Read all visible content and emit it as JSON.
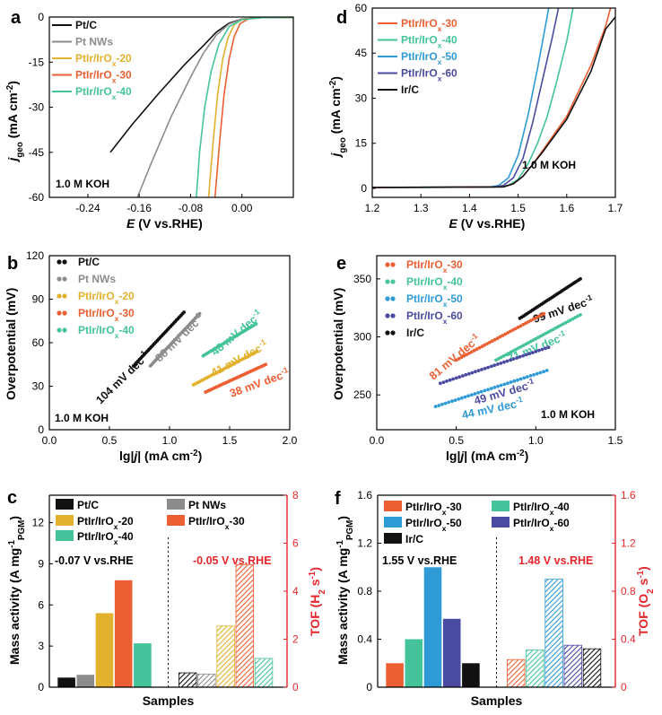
{
  "colors": {
    "black": "#111111",
    "gray": "#8c8c8c",
    "yellow": "#e2b12e",
    "red": "#ec5f33",
    "teal": "#45c39b",
    "blue": "#2e9ad6",
    "purple": "#4b4aa1",
    "axis_red": "#e5262b"
  },
  "chart_data": [
    {
      "id": "a",
      "type": "line",
      "panel_letter": "a",
      "xlabel_main": "E",
      "xlabel_rest": " (V vs.RHE)",
      "ylabel_main": "j",
      "ylabel_sub": "geo",
      "ylabel_rest": " (mA cm",
      "ylabel_sup": "-2",
      "ylabel_end": ")",
      "xlim": [
        -0.3,
        0.08
      ],
      "ylim": [
        -60,
        0
      ],
      "xticks": [
        "-0.24",
        "-0.16",
        "-0.08",
        "0.00"
      ],
      "xtick_values": [
        -0.24,
        -0.16,
        -0.08,
        0.0
      ],
      "yticks": [
        "0",
        "-15",
        "-30",
        "-45",
        "-60"
      ],
      "ytick_values": [
        0,
        -15,
        -30,
        -45,
        -60
      ],
      "annotation": "1.0 M KOH",
      "legend": [
        {
          "base": "Pt/C",
          "sub": "",
          "rest": "",
          "color": "black"
        },
        {
          "base": "Pt NWs",
          "sub": "",
          "rest": "",
          "color": "gray"
        },
        {
          "base": "PtIr/IrO",
          "sub": "x",
          "rest": "-20",
          "color": "yellow"
        },
        {
          "base": "PtIr/IrO",
          "sub": "x",
          "rest": "-30",
          "color": "red"
        },
        {
          "base": "PtIr/IrO",
          "sub": "x",
          "rest": "-40",
          "color": "teal"
        }
      ],
      "series": [
        {
          "color": "black",
          "points": [
            [
              -0.205,
              -45
            ],
            [
              -0.17,
              -35.5
            ],
            [
              -0.13,
              -25.5
            ],
            [
              -0.09,
              -16
            ],
            [
              -0.06,
              -9.5
            ],
            [
              -0.04,
              -5
            ],
            [
              -0.02,
              -2
            ],
            [
              0.0,
              -0.7
            ],
            [
              0.03,
              -0.2
            ],
            [
              0.08,
              -0.1
            ]
          ]
        },
        {
          "color": "gray",
          "points": [
            [
              -0.163,
              -60
            ],
            [
              -0.14,
              -48
            ],
            [
              -0.11,
              -33
            ],
            [
              -0.08,
              -20
            ],
            [
              -0.06,
              -12
            ],
            [
              -0.04,
              -6
            ],
            [
              -0.02,
              -2.3
            ],
            [
              0.0,
              -0.7
            ],
            [
              0.03,
              -0.2
            ],
            [
              0.08,
              -0.1
            ]
          ]
        },
        {
          "color": "yellow",
          "points": [
            [
              -0.052,
              -60
            ],
            [
              -0.045,
              -42
            ],
            [
              -0.038,
              -26
            ],
            [
              -0.03,
              -14
            ],
            [
              -0.022,
              -7
            ],
            [
              -0.012,
              -2.5
            ],
            [
              0.0,
              -0.8
            ],
            [
              0.03,
              -0.2
            ],
            [
              0.08,
              -0.1
            ]
          ]
        },
        {
          "color": "red",
          "points": [
            [
              -0.042,
              -60
            ],
            [
              -0.035,
              -42
            ],
            [
              -0.028,
              -26
            ],
            [
              -0.02,
              -14
            ],
            [
              -0.012,
              -6.5
            ],
            [
              -0.003,
              -2.2
            ],
            [
              0.01,
              -0.6
            ],
            [
              0.03,
              -0.2
            ],
            [
              0.08,
              -0.1
            ]
          ]
        },
        {
          "color": "teal",
          "points": [
            [
              -0.071,
              -60
            ],
            [
              -0.066,
              -45
            ],
            [
              -0.058,
              -30
            ],
            [
              -0.048,
              -18
            ],
            [
              -0.036,
              -9
            ],
            [
              -0.02,
              -3.2
            ],
            [
              0.0,
              -0.9
            ],
            [
              0.03,
              -0.2
            ],
            [
              0.08,
              -0.1
            ]
          ]
        }
      ]
    },
    {
      "id": "d",
      "type": "line",
      "panel_letter": "d",
      "xlabel_main": "E",
      "xlabel_rest": " (V vs.RHE)",
      "ylabel_main": "j",
      "ylabel_sub": "geo",
      "ylabel_rest": " (mA cm",
      "ylabel_sup": "-2",
      "ylabel_end": ")",
      "xlim": [
        1.2,
        1.7
      ],
      "ylim": [
        -3,
        60
      ],
      "xticks": [
        "1.2",
        "1.3",
        "1.4",
        "1.5",
        "1.6",
        "1.7"
      ],
      "xtick_values": [
        1.2,
        1.3,
        1.4,
        1.5,
        1.6,
        1.7
      ],
      "yticks": [
        "0",
        "15",
        "30",
        "45",
        "60"
      ],
      "ytick_values": [
        0,
        15,
        30,
        45,
        60
      ],
      "annotation": "1.0 M KOH",
      "legend": [
        {
          "base": "PtIr/IrO",
          "sub": "x",
          "rest": "-30",
          "color": "red"
        },
        {
          "base": "PtIr/IrO",
          "sub": "x",
          "rest": "-40",
          "color": "teal"
        },
        {
          "base": "PtIr/IrO",
          "sub": "x",
          "rest": "-50",
          "color": "blue"
        },
        {
          "base": "PtIr/IrO",
          "sub": "x",
          "rest": "-60",
          "color": "purple"
        },
        {
          "base": "Ir/C",
          "sub": "",
          "rest": "",
          "color": "black"
        }
      ],
      "series": [
        {
          "color": "teal",
          "points": [
            [
              1.2,
              0.3
            ],
            [
              1.45,
              0.4
            ],
            [
              1.48,
              1
            ],
            [
              1.5,
              3
            ],
            [
              1.52,
              8
            ],
            [
              1.54,
              15
            ],
            [
              1.56,
              24
            ],
            [
              1.58,
              36
            ],
            [
              1.6,
              49
            ],
            [
              1.613,
              60
            ]
          ]
        },
        {
          "color": "blue",
          "points": [
            [
              1.2,
              0.3
            ],
            [
              1.44,
              0.4
            ],
            [
              1.46,
              1
            ],
            [
              1.48,
              3.5
            ],
            [
              1.5,
              11
            ],
            [
              1.52,
              24
            ],
            [
              1.54,
              40
            ],
            [
              1.555,
              53
            ],
            [
              1.563,
              60
            ]
          ]
        },
        {
          "color": "purple",
          "points": [
            [
              1.2,
              0.3
            ],
            [
              1.45,
              0.4
            ],
            [
              1.47,
              1
            ],
            [
              1.49,
              3.5
            ],
            [
              1.51,
              10
            ],
            [
              1.53,
              22
            ],
            [
              1.55,
              36
            ],
            [
              1.57,
              50
            ],
            [
              1.583,
              60
            ]
          ]
        },
        {
          "color": "red",
          "points": [
            [
              1.2,
              0.3
            ],
            [
              1.47,
              0.5
            ],
            [
              1.49,
              1.5
            ],
            [
              1.51,
              4
            ],
            [
              1.53,
              8
            ],
            [
              1.55,
              12.5
            ],
            [
              1.6,
              24
            ],
            [
              1.65,
              41
            ],
            [
              1.68,
              54
            ],
            [
              1.69,
              60
            ]
          ]
        },
        {
          "color": "black",
          "points": [
            [
              1.2,
              0.3
            ],
            [
              1.47,
              0.5
            ],
            [
              1.49,
              1.5
            ],
            [
              1.51,
              4
            ],
            [
              1.53,
              8
            ],
            [
              1.55,
              12
            ],
            [
              1.6,
              23
            ],
            [
              1.65,
              39
            ],
            [
              1.68,
              53
            ],
            [
              1.7,
              57
            ]
          ]
        }
      ]
    },
    {
      "id": "b",
      "type": "scatter",
      "panel_letter": "b",
      "xlabel_main": "lg|",
      "xlabel_italic": "j",
      "xlabel_rest": "| (mA cm",
      "xlabel_sup": "-2",
      "xlabel_end": ")",
      "ylabel": "Overpotential (mV)",
      "xlim": [
        0.0,
        2.0
      ],
      "ylim": [
        0,
        120
      ],
      "xticks": [
        "0.0",
        "0.5",
        "1.0",
        "1.5",
        "2.0"
      ],
      "xtick_values": [
        0.0,
        0.5,
        1.0,
        1.5,
        2.0
      ],
      "yticks": [
        "0",
        "30",
        "60",
        "90",
        "120"
      ],
      "ytick_values": [
        0,
        30,
        60,
        90,
        120
      ],
      "annotation": "1.0 M KOH",
      "legend": [
        {
          "base": "Pt/C",
          "sub": "",
          "rest": "",
          "color": "black"
        },
        {
          "base": "Pt NWs",
          "sub": "",
          "rest": "",
          "color": "gray"
        },
        {
          "base": "PtIr/IrO",
          "sub": "x",
          "rest": "-20",
          "color": "yellow"
        },
        {
          "base": "PtIr/IrO",
          "sub": "x",
          "rest": "-30",
          "color": "red"
        },
        {
          "base": "PtIr/IrO",
          "sub": "x",
          "rest": "-40",
          "color": "teal"
        }
      ],
      "series": [
        {
          "color": "black",
          "x0": 0.7,
          "x1": 1.12,
          "y0": 44,
          "y1": 81,
          "label": "104 mV dec",
          "label_sup": "-1"
        },
        {
          "color": "gray",
          "x0": 0.84,
          "x1": 1.25,
          "y0": 44,
          "y1": 80,
          "label": "88 mV dec",
          "label_sup": "-1"
        },
        {
          "color": "teal",
          "x0": 1.28,
          "x1": 1.72,
          "y0": 51,
          "y1": 73,
          "label": "48 mV dec",
          "label_sup": "-1"
        },
        {
          "color": "yellow",
          "x0": 1.2,
          "x1": 1.73,
          "y0": 31,
          "y1": 54,
          "label": "41 mV dec",
          "label_sup": "-1"
        },
        {
          "color": "red",
          "x0": 1.3,
          "x1": 1.8,
          "y0": 26,
          "y1": 45,
          "label": "38 mV dec",
          "label_sup": "-1"
        }
      ]
    },
    {
      "id": "e",
      "type": "scatter",
      "panel_letter": "e",
      "xlabel_main": "lg|",
      "xlabel_italic": "j",
      "xlabel_rest": "| (mA cm",
      "xlabel_sup": "-2",
      "xlabel_end": ")",
      "ylabel": "Overpotential (mV)",
      "xlim": [
        0.0,
        1.5
      ],
      "ylim": [
        220,
        370
      ],
      "xticks": [
        "0.0",
        "0.5",
        "1.0",
        "1.5"
      ],
      "xtick_values": [
        0.0,
        0.5,
        1.0,
        1.5
      ],
      "yticks": [
        "250",
        "300",
        "350"
      ],
      "ytick_values": [
        250,
        300,
        350
      ],
      "annotation": "1.0 M KOH",
      "legend": [
        {
          "base": "PtIr/IrO",
          "sub": "x",
          "rest": "-30",
          "color": "red"
        },
        {
          "base": "PtIr/IrO",
          "sub": "x",
          "rest": "-40",
          "color": "teal"
        },
        {
          "base": "PtIr/IrO",
          "sub": "x",
          "rest": "-50",
          "color": "blue"
        },
        {
          "base": "PtIr/IrO",
          "sub": "x",
          "rest": "-60",
          "color": "purple"
        },
        {
          "base": "Ir/C",
          "sub": "",
          "rest": "",
          "color": "black"
        }
      ],
      "series": [
        {
          "color": "black",
          "x0": 0.9,
          "x1": 1.28,
          "y0": 316,
          "y1": 350,
          "label": "99 mV dec",
          "label_sup": "-1"
        },
        {
          "color": "red",
          "x0": 0.5,
          "x1": 1.05,
          "y0": 280,
          "y1": 320,
          "label": "81 mV dec",
          "label_sup": "-1"
        },
        {
          "color": "teal",
          "x0": 0.75,
          "x1": 1.28,
          "y0": 280,
          "y1": 319,
          "label": "71 mV dec",
          "label_sup": "-1"
        },
        {
          "color": "purple",
          "x0": 0.4,
          "x1": 1.08,
          "y0": 260,
          "y1": 291,
          "label": "49 mV dec",
          "label_sup": "-1"
        },
        {
          "color": "blue",
          "x0": 0.37,
          "x1": 1.07,
          "y0": 240,
          "y1": 271,
          "label": "44 mV dec",
          "label_sup": "-1"
        }
      ]
    },
    {
      "id": "c",
      "type": "bar",
      "panel_letter": "c",
      "xlabel": "Samples",
      "ylabel_left": "Mass activity (A mg",
      "ylabel_left_sup": "-1",
      "ylabel_left_sub": "PGM",
      "ylabel_left_end": ")",
      "ylabel_right": "TOF (H",
      "ylabel_right_sub": "2",
      "ylabel_right_mid": " s",
      "ylabel_right_sup": "-1",
      "ylabel_right_end": ")",
      "ylim_left": [
        0,
        14
      ],
      "ylim_right": [
        0,
        8
      ],
      "yticks_left": [
        "0",
        "3",
        "6",
        "9",
        "12"
      ],
      "ytick_values_left": [
        0,
        3,
        6,
        9,
        12
      ],
      "yticks_right": [
        "0",
        "2",
        "4",
        "6",
        "8"
      ],
      "ytick_values_right": [
        0,
        2,
        4,
        6,
        8
      ],
      "left_note": "-0.07 V vs.RHE",
      "right_note": "-0.05 V vs.RHE",
      "legend": [
        {
          "base": "Pt/C",
          "sub": "",
          "rest": "",
          "color": "black"
        },
        {
          "base": "Pt NWs",
          "sub": "",
          "rest": "",
          "color": "gray"
        },
        {
          "base": "PtIr/IrO",
          "sub": "x",
          "rest": "-20",
          "color": "yellow"
        },
        {
          "base": "PtIr/IrO",
          "sub": "x",
          "rest": "-30",
          "color": "red"
        },
        {
          "base": "PtIr/IrO",
          "sub": "x",
          "rest": "-40",
          "color": "teal"
        }
      ],
      "mass_activity": [
        0.7,
        0.9,
        5.4,
        7.8,
        3.2
      ],
      "tof": [
        0.6,
        0.55,
        2.55,
        5.1,
        1.2
      ]
    },
    {
      "id": "f",
      "type": "bar",
      "panel_letter": "f",
      "xlabel": "Samples",
      "ylabel_left": "Mass activity (A mg",
      "ylabel_left_sup": "-1",
      "ylabel_left_sub": "PGM",
      "ylabel_left_end": ")",
      "ylabel_right": "TOF (O",
      "ylabel_right_sub": "2",
      "ylabel_right_mid": " s",
      "ylabel_right_sup": "-1",
      "ylabel_right_end": ")",
      "ylim_left": [
        0,
        1.6
      ],
      "ylim_right": [
        0,
        1.6
      ],
      "yticks_left": [
        "0",
        "0.4",
        "0.8",
        "1.2",
        "1.6"
      ],
      "ytick_values_left": [
        0,
        0.4,
        0.8,
        1.2,
        1.6
      ],
      "yticks_right": [
        "0",
        "0.4",
        "0.8",
        "1.2",
        "1.6"
      ],
      "ytick_values_right": [
        0,
        0.4,
        0.8,
        1.2,
        1.6
      ],
      "left_note": "1.55 V vs.RHE",
      "right_note": "1.48 V vs.RHE",
      "legend": [
        {
          "base": "PtIr/IrO",
          "sub": "x",
          "rest": "-30",
          "color": "red"
        },
        {
          "base": "PtIr/IrO",
          "sub": "x",
          "rest": "-40",
          "color": "teal"
        },
        {
          "base": "PtIr/IrO",
          "sub": "x",
          "rest": "-50",
          "color": "blue"
        },
        {
          "base": "PtIr/IrO",
          "sub": "x",
          "rest": "-60",
          "color": "purple"
        },
        {
          "base": "Ir/C",
          "sub": "",
          "rest": "",
          "color": "black"
        }
      ],
      "mass_activity": [
        0.2,
        0.4,
        1.0,
        0.57,
        0.2
      ],
      "tof": [
        0.23,
        0.31,
        0.9,
        0.35,
        0.32
      ]
    }
  ]
}
